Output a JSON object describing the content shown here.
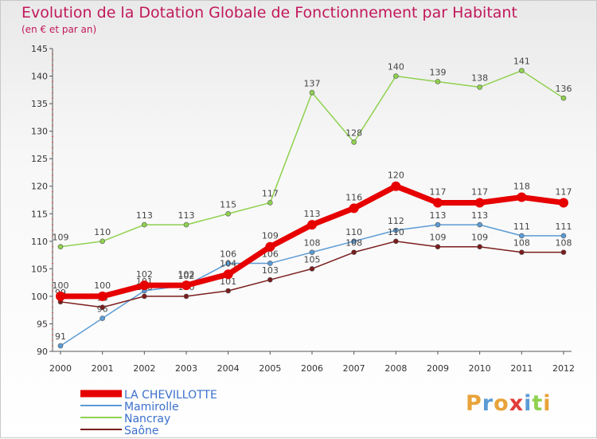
{
  "title": "Evolution de la Dotation Globale de Fonctionnement par Habitant",
  "subtitle": "(en € et par an)",
  "logo": "Proxiti",
  "chart_data": {
    "type": "line",
    "title": "Evolution de la Dotation Globale de Fonctionnement par Habitant",
    "subtitle": "(en € et par an)",
    "x": [
      "2000",
      "2001",
      "2002",
      "2003",
      "2004",
      "2005",
      "2006",
      "2007",
      "2008",
      "2009",
      "2010",
      "2011",
      "2012"
    ],
    "ylim": [
      90,
      145
    ],
    "yticks": [
      90,
      95,
      100,
      105,
      110,
      115,
      120,
      125,
      130,
      135,
      140,
      145
    ],
    "grid": false,
    "legend_position": "bottom-left",
    "series": [
      {
        "name": "LA CHEVILLOTTE",
        "color": "#e60000",
        "values": [
          100,
          100,
          102,
          102,
          104,
          109,
          113,
          116,
          120,
          117,
          117,
          118,
          117
        ]
      },
      {
        "name": "Mamirolle",
        "color": "#5b9bd5",
        "values": [
          91,
          96,
          101,
          102,
          106,
          106,
          108,
          110,
          112,
          113,
          113,
          111,
          111
        ]
      },
      {
        "name": "Nancray",
        "color": "#8fd14f",
        "values": [
          109,
          110,
          113,
          113,
          115,
          117,
          137,
          128,
          140,
          139,
          138,
          141,
          136
        ]
      },
      {
        "name": "Saône",
        "color": "#7b1c1c",
        "values": [
          99,
          98,
          100,
          100,
          101,
          103,
          105,
          108,
          110,
          109,
          109,
          108,
          108
        ]
      }
    ]
  }
}
